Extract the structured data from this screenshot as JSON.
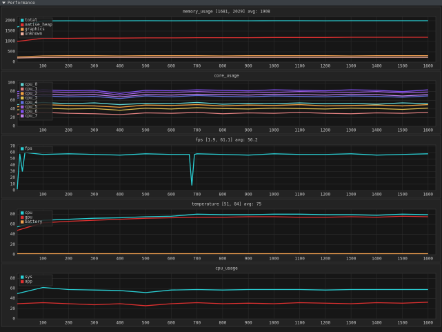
{
  "header": {
    "title": "Performance"
  },
  "chart_data": [
    {
      "type": "line",
      "title": "memory_usage [1681, 2029] avg: 1908",
      "x": [
        0,
        100,
        200,
        300,
        400,
        500,
        600,
        700,
        800,
        900,
        1000,
        1100,
        1200,
        1300,
        1400,
        1500,
        1600
      ],
      "series": [
        {
          "name": "total",
          "color": "#2ad1d6",
          "values": [
            1700,
            1990,
            1995,
            1990,
            1995,
            2000,
            1995,
            2000,
            2000,
            1995,
            2000,
            2000,
            1995,
            2000,
            2000,
            2000,
            2000
          ]
        },
        {
          "name": "native_heap",
          "color": "#e03030",
          "values": [
            1000,
            1150,
            1150,
            1160,
            1160,
            1170,
            1170,
            1180,
            1180,
            1180,
            1190,
            1190,
            1190,
            1200,
            1200,
            1200,
            1200
          ]
        },
        {
          "name": "graphics",
          "color": "#f0a050",
          "values": [
            250,
            300,
            310,
            310,
            300,
            310,
            310,
            310,
            300,
            310,
            310,
            310,
            310,
            300,
            310,
            310,
            310
          ]
        },
        {
          "name": "unknown",
          "color": "#f0b0a0",
          "values": [
            200,
            220,
            230,
            230,
            230,
            230,
            230,
            230,
            230,
            230,
            230,
            230,
            230,
            230,
            230,
            230,
            230
          ]
        }
      ],
      "xlim": [
        0,
        1630
      ],
      "xticks": [
        100,
        200,
        300,
        400,
        500,
        600,
        700,
        800,
        900,
        1000,
        1100,
        1200,
        1300,
        1400,
        1500,
        1600
      ],
      "ylim": [
        0,
        2200
      ],
      "yticks": [
        0,
        500,
        1000,
        1500,
        2000
      ],
      "grid": true
    },
    {
      "type": "line",
      "title": "core_usage",
      "x": [
        0,
        100,
        200,
        300,
        400,
        500,
        600,
        700,
        800,
        900,
        1000,
        1100,
        1200,
        1300,
        1400,
        1500,
        1600
      ],
      "series": [
        {
          "name": "cpu_0",
          "color": "#5fd0d0",
          "values": [
            50,
            55,
            52,
            54,
            50,
            53,
            52,
            55,
            51,
            53,
            52,
            54,
            52,
            53,
            51,
            54,
            52
          ]
        },
        {
          "name": "cpu_1",
          "color": "#e08080",
          "values": [
            28,
            32,
            30,
            29,
            27,
            31,
            30,
            32,
            29,
            31,
            30,
            32,
            30,
            29,
            31,
            30,
            32
          ]
        },
        {
          "name": "cpu_2",
          "color": "#f0a040",
          "values": [
            45,
            50,
            48,
            47,
            44,
            49,
            48,
            50,
            47,
            49,
            48,
            50,
            47,
            48,
            49,
            47,
            50
          ]
        },
        {
          "name": "cpu_3",
          "color": "#e0c050",
          "values": [
            38,
            42,
            40,
            41,
            37,
            42,
            40,
            43,
            41,
            40,
            42,
            41,
            40,
            42,
            41,
            39,
            42
          ]
        },
        {
          "name": "cpu_4",
          "color": "#6070e0",
          "values": [
            65,
            70,
            68,
            69,
            64,
            70,
            68,
            71,
            69,
            68,
            70,
            69,
            68,
            70,
            69,
            67,
            70
          ]
        },
        {
          "name": "cpu_5",
          "color": "#a060e0",
          "values": [
            75,
            80,
            78,
            79,
            72,
            79,
            78,
            80,
            78,
            79,
            78,
            80,
            79,
            78,
            80,
            77,
            79
          ]
        },
        {
          "name": "cpu_6",
          "color": "#8050f0",
          "values": [
            80,
            84,
            82,
            83,
            76,
            83,
            82,
            84,
            83,
            82,
            84,
            83,
            82,
            84,
            83,
            80,
            84
          ]
        },
        {
          "name": "cpu_7",
          "color": "#c080f0",
          "values": [
            70,
            74,
            72,
            73,
            68,
            73,
            72,
            74,
            73,
            72,
            74,
            73,
            72,
            74,
            73,
            70,
            73
          ]
        }
      ],
      "xlim": [
        0,
        1630
      ],
      "xticks": [
        100,
        200,
        300,
        400,
        500,
        600,
        700,
        800,
        900,
        1000,
        1100,
        1200,
        1300,
        1400,
        1500,
        1600
      ],
      "ylim": [
        0,
        105
      ],
      "yticks": [
        0,
        20,
        40,
        60,
        80,
        100
      ],
      "grid": true
    },
    {
      "type": "line",
      "title": "fps [1.9, 61.1] avg: 56.2",
      "x": [
        0,
        10,
        20,
        30,
        100,
        200,
        300,
        400,
        500,
        600,
        670,
        680,
        690,
        700,
        800,
        900,
        1000,
        1100,
        1200,
        1300,
        1400,
        1500,
        1600
      ],
      "series": [
        {
          "name": "fps",
          "color": "#2ad1d6",
          "values": [
            2,
            58,
            30,
            60,
            57,
            58,
            57,
            56,
            58,
            57,
            57,
            8,
            57,
            58,
            57,
            56,
            58,
            57,
            57,
            58,
            56,
            57,
            58
          ]
        }
      ],
      "xlim": [
        0,
        1630
      ],
      "xticks": [
        100,
        200,
        300,
        400,
        500,
        600,
        700,
        800,
        900,
        1000,
        1100,
        1200,
        1300,
        1400,
        1500,
        1600
      ],
      "ylim": [
        0,
        72
      ],
      "yticks": [
        0,
        10,
        20,
        30,
        40,
        50,
        60,
        70
      ],
      "grid": true
    },
    {
      "type": "line",
      "title": "temperature [51, 84] avg: 75",
      "x": [
        0,
        100,
        200,
        300,
        400,
        500,
        600,
        700,
        800,
        900,
        1000,
        1100,
        1200,
        1300,
        1400,
        1500,
        1600
      ],
      "series": [
        {
          "name": "cpu",
          "color": "#2ad1d6",
          "values": [
            55,
            68,
            70,
            72,
            73,
            75,
            76,
            80,
            79,
            79,
            80,
            80,
            79,
            79,
            78,
            80,
            79
          ]
        },
        {
          "name": "gpu",
          "color": "#e03030",
          "values": [
            48,
            63,
            66,
            68,
            70,
            72,
            73,
            74,
            74,
            75,
            75,
            74,
            74,
            75,
            74,
            76,
            75
          ]
        },
        {
          "name": "battery",
          "color": "#f0a050",
          "values": [
            2,
            2,
            2,
            2,
            2,
            2,
            2,
            2,
            2,
            2,
            2,
            2,
            2,
            2,
            2,
            2,
            2
          ]
        }
      ],
      "xlim": [
        0,
        1630
      ],
      "xticks": [
        100,
        200,
        300,
        400,
        500,
        600,
        700,
        800,
        900,
        1000,
        1100,
        1200,
        1300,
        1400,
        1500,
        1600
      ],
      "ylim": [
        0,
        90
      ],
      "yticks": [
        0,
        20,
        40,
        60,
        80
      ],
      "grid": true
    },
    {
      "type": "line",
      "title": "cpu_usage",
      "x": [
        0,
        100,
        200,
        300,
        400,
        500,
        600,
        700,
        800,
        900,
        1000,
        1100,
        1200,
        1300,
        1400,
        1500,
        1600
      ],
      "series": [
        {
          "name": "sys",
          "color": "#2ad1d6",
          "values": [
            50,
            62,
            58,
            57,
            56,
            52,
            57,
            58,
            57,
            58,
            58,
            58,
            57,
            58,
            58,
            58,
            58
          ]
        },
        {
          "name": "app",
          "color": "#e03030",
          "values": [
            30,
            32,
            30,
            28,
            30,
            26,
            30,
            32,
            30,
            31,
            30,
            32,
            31,
            30,
            32,
            31,
            33
          ]
        }
      ],
      "xlim": [
        0,
        1630
      ],
      "xticks": [
        100,
        200,
        300,
        400,
        500,
        600,
        700,
        800,
        900,
        1000,
        1100,
        1200,
        1300,
        1400,
        1500,
        1600
      ],
      "ylim": [
        0,
        90
      ],
      "yticks": [
        0,
        20,
        40,
        60,
        80
      ],
      "grid": true
    }
  ]
}
